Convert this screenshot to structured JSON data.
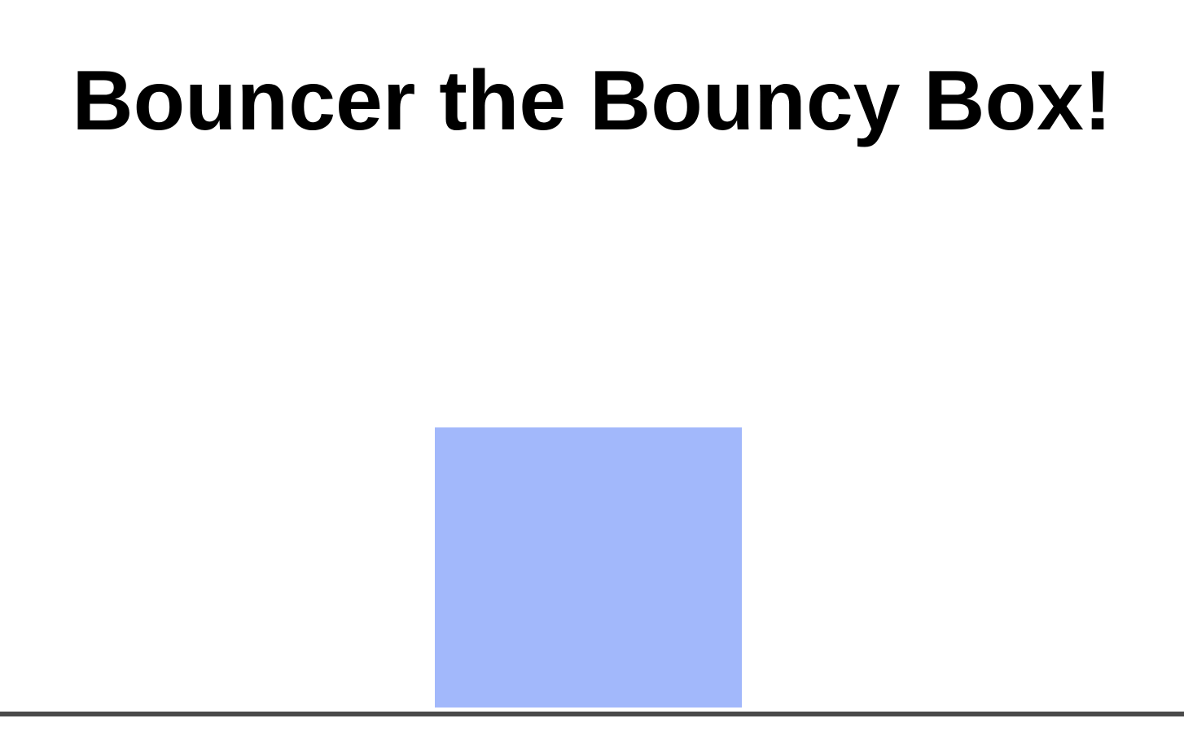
{
  "page": {
    "title": "Bouncer the Bouncy Box!"
  },
  "colors": {
    "box": "#a2b8fb",
    "ground": "#4a4a4a",
    "background": "#ffffff"
  }
}
